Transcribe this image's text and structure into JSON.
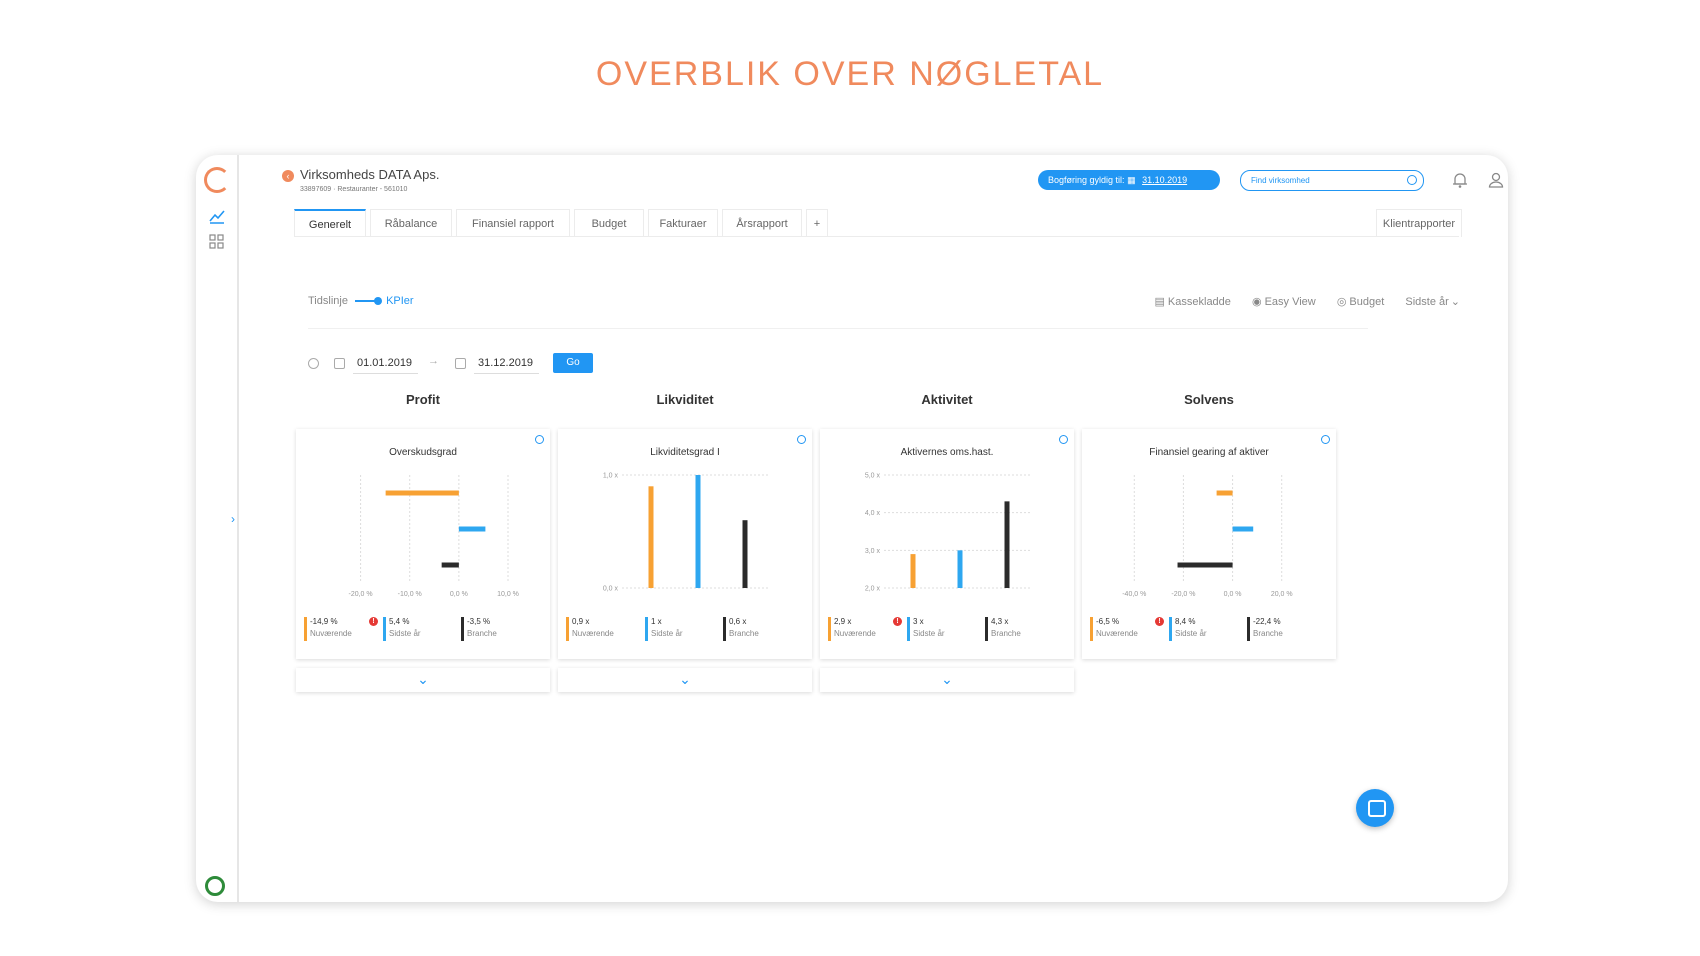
{
  "hero_title": "OVERBLIK OVER NØGLETAL",
  "company": {
    "name": "Virksomheds DATA Aps.",
    "sub": "33897609 · Restauranter - 561010"
  },
  "booking": {
    "label": "Bogføring gyldig til:",
    "date": "31.10.2019"
  },
  "search": {
    "placeholder": "Find virksomhed"
  },
  "tabs": [
    "Generelt",
    "Råbalance",
    "Finansiel rapport",
    "Budget",
    "Fakturaer",
    "Årsrapport",
    "+"
  ],
  "tab_right": "Klientrapporter",
  "toggle": {
    "left": "Tidslinje",
    "right": "KPIer"
  },
  "options": {
    "kassekladde": "Kassekladde",
    "easy_view": "Easy View",
    "budget": "Budget",
    "period": "Sidste år"
  },
  "dates": {
    "from": "01.01.2019",
    "to": "31.12.2019",
    "go": "Go"
  },
  "categories": [
    "Profit",
    "Likviditet",
    "Aktivitet",
    "Solvens"
  ],
  "colors": {
    "current": "#f7a133",
    "last_year": "#2ea7f0",
    "industry": "#2b2b2b",
    "accent": "#2196f3"
  },
  "cards": [
    {
      "title": "Overskudsgrad",
      "legend": [
        {
          "value": "-14,9 %",
          "label": "Nuværende",
          "warn": true
        },
        {
          "value": "5,4 %",
          "label": "Sidste år"
        },
        {
          "value": "-3,5 %",
          "label": "Branche"
        }
      ]
    },
    {
      "title": "Likviditetsgrad I",
      "legend": [
        {
          "value": "0,9 x",
          "label": "Nuværende"
        },
        {
          "value": "1 x",
          "label": "Sidste år"
        },
        {
          "value": "0,6 x",
          "label": "Branche"
        }
      ]
    },
    {
      "title": "Aktivernes oms.hast.",
      "legend": [
        {
          "value": "2,9 x",
          "label": "Nuværende",
          "warn": true
        },
        {
          "value": "3 x",
          "label": "Sidste år"
        },
        {
          "value": "4,3 x",
          "label": "Branche"
        }
      ]
    },
    {
      "title": "Finansiel gearing af aktiver",
      "legend": [
        {
          "value": "-6,5 %",
          "label": "Nuværende",
          "warn": true
        },
        {
          "value": "8,4 %",
          "label": "Sidste år"
        },
        {
          "value": "-22,4 %",
          "label": "Branche"
        }
      ]
    }
  ],
  "chart_data": [
    {
      "type": "bar",
      "orientation": "horizontal",
      "categories": [
        "Nuværende",
        "Sidste år",
        "Branche"
      ],
      "values": [
        -14.9,
        5.4,
        -3.5
      ],
      "xlim": [
        -25,
        10
      ],
      "ticks": [
        "-20,0 %",
        "-10,0 %",
        "0,0 %",
        "10,0 %"
      ],
      "tick_values": [
        -20,
        -10,
        0,
        10
      ]
    },
    {
      "type": "bar",
      "orientation": "vertical",
      "categories": [
        "Nuværende",
        "Sidste år",
        "Branche"
      ],
      "values": [
        0.9,
        1.0,
        0.6
      ],
      "ylim": [
        0,
        1
      ],
      "ticks": [
        "0,0 x",
        "1,0 x"
      ],
      "tick_values": [
        0,
        1
      ]
    },
    {
      "type": "bar",
      "orientation": "vertical",
      "categories": [
        "Nuværende",
        "Sidste år",
        "Branche"
      ],
      "values": [
        2.9,
        3.0,
        4.3
      ],
      "ylim": [
        2,
        5
      ],
      "ticks": [
        "2,0 x",
        "3,0 x",
        "4,0 x",
        "5,0 x"
      ],
      "tick_values": [
        2,
        3,
        4,
        5
      ]
    },
    {
      "type": "bar",
      "orientation": "horizontal",
      "categories": [
        "Nuværende",
        "Sidste år",
        "Branche"
      ],
      "values": [
        -6.5,
        8.4,
        -22.4
      ],
      "xlim": [
        -45,
        25
      ],
      "ticks": [
        "-40,0 %",
        "-20,0 %",
        "0,0 %",
        "20,0 %"
      ],
      "tick_values": [
        -40,
        -20,
        0,
        20
      ]
    }
  ]
}
